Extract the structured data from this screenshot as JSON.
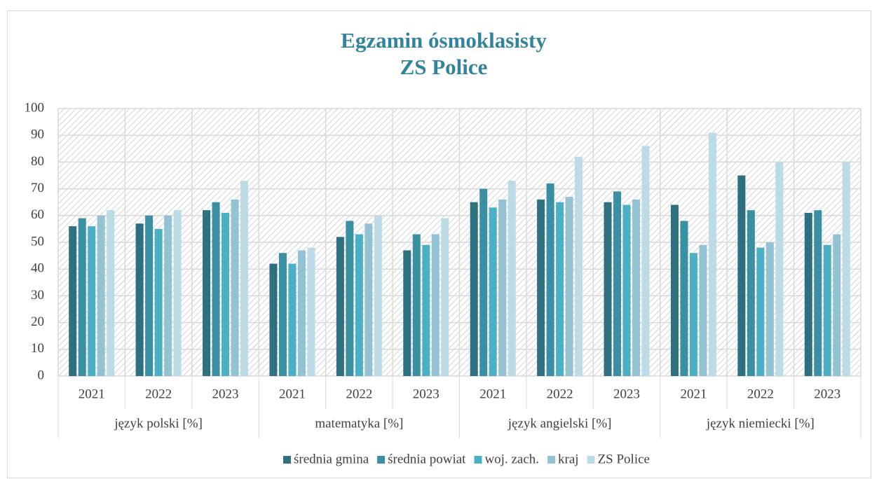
{
  "chart_data": {
    "type": "bar",
    "title": [
      "Egzamin ósmoklasisty",
      "ZS Police"
    ],
    "categories": [
      "2021",
      "2022",
      "2023",
      "2021",
      "2022",
      "2023",
      "2021",
      "2022",
      "2023",
      "2021",
      "2022",
      "2023"
    ],
    "category_groups": [
      "język polski [%]",
      "matematyka [%]",
      "język angielski [%]",
      "język niemiecki [%]"
    ],
    "series": [
      {
        "name": "średnia gmina",
        "color": "#2e6f80",
        "values": [
          56,
          57,
          62,
          42,
          52,
          47,
          65,
          66,
          65,
          64,
          75,
          61
        ]
      },
      {
        "name": "średnia powiat",
        "color": "#3a8fa3",
        "values": [
          59,
          60,
          65,
          46,
          58,
          53,
          70,
          72,
          69,
          58,
          62,
          62
        ]
      },
      {
        "name": "woj. zach.",
        "color": "#4bafc6",
        "values": [
          56,
          55,
          61,
          42,
          53,
          49,
          63,
          65,
          64,
          46,
          48,
          49
        ]
      },
      {
        "name": "kraj",
        "color": "#93c3d2",
        "values": [
          60,
          60,
          66,
          47,
          57,
          53,
          66,
          67,
          66,
          49,
          50,
          53
        ]
      },
      {
        "name": "ZS Police",
        "color": "#bcdbe6",
        "values": [
          62,
          62,
          73,
          48,
          60,
          59,
          73,
          82,
          86,
          91,
          80,
          80
        ]
      }
    ],
    "ylim": [
      0,
      100
    ],
    "yticks": [
      0,
      10,
      20,
      30,
      40,
      50,
      60,
      70,
      80,
      90,
      100
    ],
    "grid": true,
    "legend": "bottom"
  }
}
